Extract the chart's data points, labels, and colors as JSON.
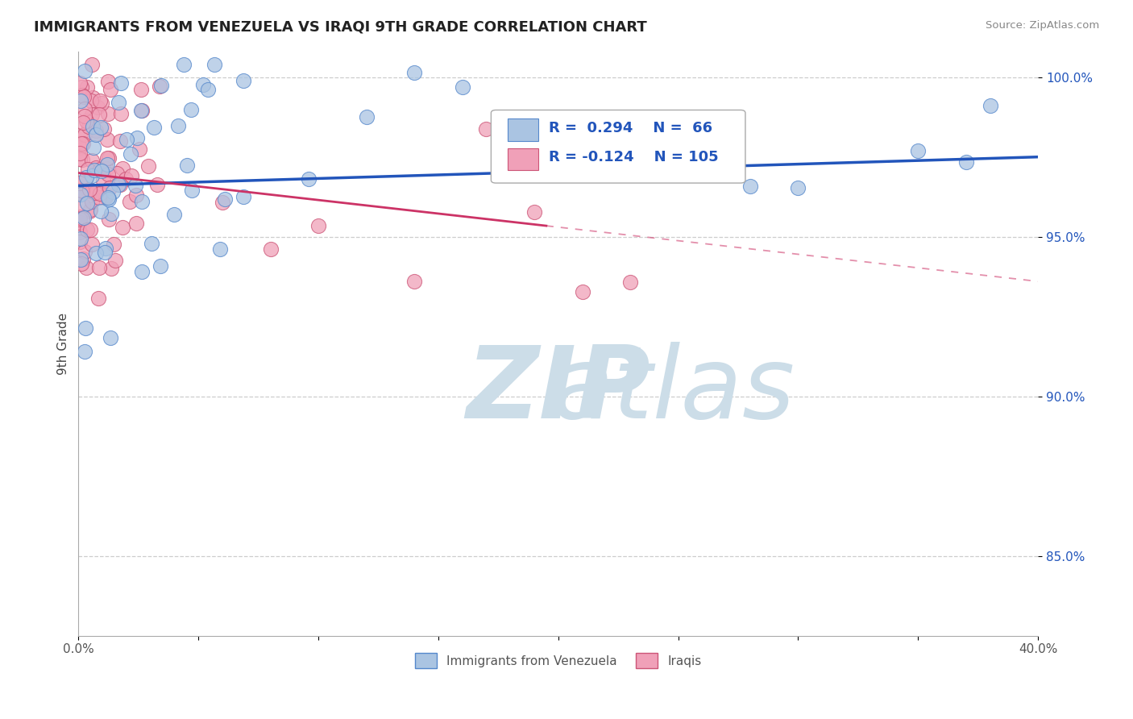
{
  "title": "IMMIGRANTS FROM VENEZUELA VS IRAQI 9TH GRADE CORRELATION CHART",
  "source": "Source: ZipAtlas.com",
  "ylabel": "9th Grade",
  "xlim": [
    0.0,
    0.4
  ],
  "ylim": [
    0.825,
    1.008
  ],
  "yticks": [
    0.85,
    0.9,
    0.95,
    1.0
  ],
  "ytick_labels": [
    "85.0%",
    "90.0%",
    "95.0%",
    "100.0%"
  ],
  "xtick_labels": [
    "0.0%",
    "",
    "",
    "",
    "",
    "",
    "",
    "",
    "40.0%"
  ],
  "grid_color": "#c8c8c8",
  "background_color": "#ffffff",
  "venezuela_color": "#aac4e2",
  "venezuela_edge": "#5588cc",
  "iraq_color": "#f0a0b8",
  "iraq_edge": "#cc5577",
  "trend_blue": "#2255bb",
  "trend_pink": "#cc3366",
  "legend_R1": "0.294",
  "legend_N1": "66",
  "legend_R2": "-0.124",
  "legend_N2": "105",
  "legend_color": "#2255bb",
  "watermark_color": "#ccdde8",
  "title_fontsize": 13,
  "tick_fontsize": 11
}
